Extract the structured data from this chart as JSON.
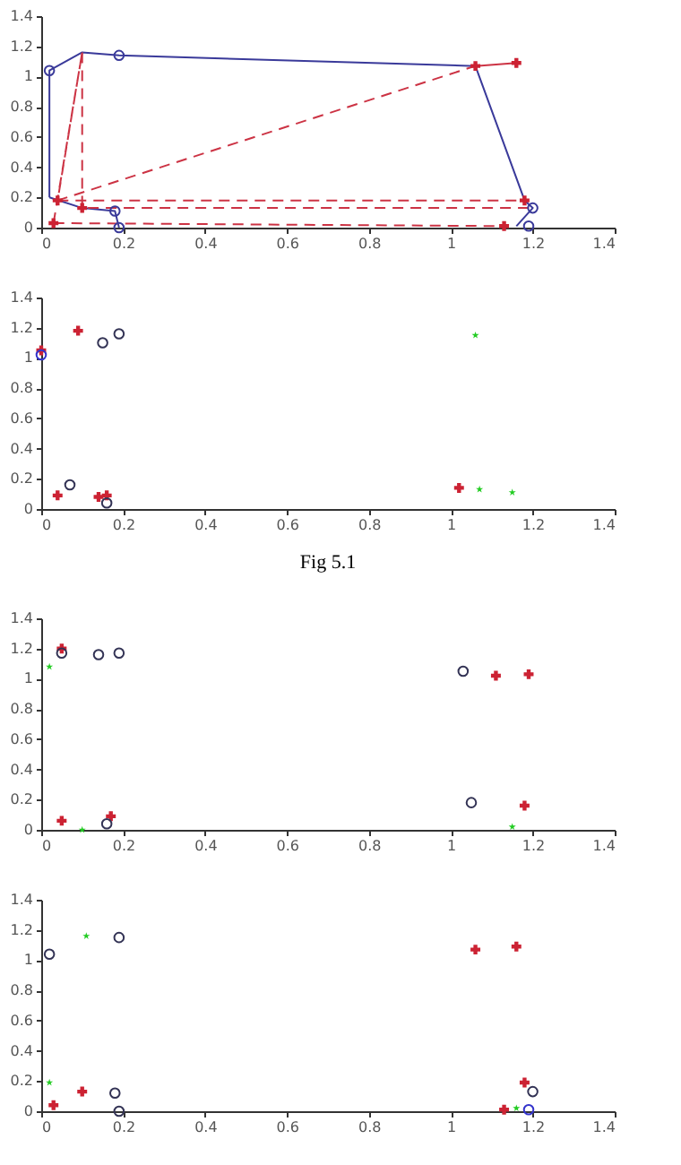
{
  "chart_data": [
    {
      "type": "line",
      "xlim": [
        0,
        1.4
      ],
      "ylim": [
        0,
        1.4
      ],
      "xticks": [
        0,
        0.2,
        0.4,
        0.6,
        0.8,
        1,
        1.2,
        1.4
      ],
      "yticks": [
        0,
        0.2,
        0.4,
        0.6,
        0.8,
        1,
        1.2,
        1.4
      ],
      "grid": false,
      "series": [
        {
          "type": "line",
          "color": "#3a3a9a",
          "line_style": "solid",
          "marker": "none",
          "x": [
            0.02,
            0.02,
            0.1,
            0.19,
            1.06,
            1.18,
            1.2,
            1.16
          ],
          "values": [
            0.2,
            1.04,
            1.16,
            1.14,
            1.07,
            0.18,
            0.13,
            0.01
          ]
        },
        {
          "type": "line",
          "color": "#3a3a9a",
          "line_style": "solid",
          "marker": "none",
          "x": [
            0.02,
            0.1,
            0.18,
            0.19
          ],
          "values": [
            0.2,
            0.13,
            0.11,
            0.0
          ]
        },
        {
          "type": "line",
          "color": "#cc3344",
          "line_style": "dashed",
          "marker": "none",
          "x": [
            0.03,
            0.1,
            0.04,
            1.06
          ],
          "values": [
            0.03,
            1.16,
            0.18,
            1.07
          ]
        },
        {
          "type": "line",
          "color": "#cc3344",
          "line_style": "dashed",
          "marker": "none",
          "x": [
            0.1,
            0.1,
            1.2
          ],
          "values": [
            1.16,
            0.13,
            0.13
          ]
        },
        {
          "type": "line",
          "color": "#cc3344",
          "line_style": "dashed",
          "marker": "none",
          "x": [
            0.04,
            1.18
          ],
          "values": [
            0.18,
            0.18
          ]
        },
        {
          "type": "line",
          "color": "#cc3344",
          "line_style": "dashed",
          "marker": "none",
          "x": [
            0.03,
            1.13
          ],
          "values": [
            0.03,
            0.01
          ]
        },
        {
          "type": "line",
          "color": "#cc3344",
          "line_style": "solid",
          "marker": "none",
          "x": [
            1.06,
            1.16
          ],
          "values": [
            1.07,
            1.09
          ]
        },
        {
          "type": "scatter",
          "color": "#3a3a9a",
          "marker": "circle",
          "x": [
            0.02,
            0.19,
            0.18,
            0.19,
            1.2,
            1.19
          ],
          "values": [
            1.04,
            1.14,
            0.11,
            0.0,
            0.13,
            0.01
          ]
        },
        {
          "type": "scatter",
          "color": "#cc2233",
          "marker": "cross",
          "x": [
            0.03,
            0.1,
            0.04,
            1.06,
            1.16,
            1.18,
            1.13
          ],
          "values": [
            0.03,
            0.13,
            0.18,
            1.07,
            1.09,
            0.18,
            0.01
          ]
        }
      ]
    },
    {
      "type": "scatter",
      "xlim": [
        0,
        1.4
      ],
      "ylim": [
        0,
        1.4
      ],
      "xticks": [
        0,
        0.2,
        0.4,
        0.6,
        0.8,
        1,
        1.2,
        1.4
      ],
      "yticks": [
        0,
        0.2,
        0.4,
        0.6,
        0.8,
        1,
        1.2,
        1.4
      ],
      "grid": false,
      "annotations": [
        "Fig 5.1"
      ],
      "series": [
        {
          "color": "#cc2233",
          "marker": "cross",
          "x": [
            0.0,
            0.09,
            0.04,
            0.14,
            0.16,
            1.02
          ],
          "values": [
            1.05,
            1.18,
            0.09,
            0.08,
            0.09,
            0.14
          ]
        },
        {
          "color": "#333355",
          "marker": "circle",
          "x": [
            0.15,
            0.19,
            0.07,
            0.16
          ],
          "values": [
            1.1,
            1.16,
            0.16,
            0.04
          ]
        },
        {
          "color": "#3333cc",
          "marker": "circle",
          "x": [
            0.0
          ],
          "values": [
            1.02
          ]
        },
        {
          "color": "#22cc22",
          "marker": "star",
          "x": [
            1.06,
            1.07,
            1.15
          ],
          "values": [
            1.15,
            0.13,
            0.11
          ]
        }
      ]
    },
    {
      "type": "scatter",
      "xlim": [
        0,
        1.4
      ],
      "ylim": [
        0,
        1.4
      ],
      "xticks": [
        0,
        0.2,
        0.4,
        0.6,
        0.8,
        1,
        1.2,
        1.4
      ],
      "yticks": [
        0,
        0.2,
        0.4,
        0.6,
        0.8,
        1,
        1.2,
        1.4
      ],
      "grid": false,
      "series": [
        {
          "color": "#cc2233",
          "marker": "cross",
          "x": [
            0.05,
            1.11,
            1.19,
            0.05,
            0.17,
            1.18
          ],
          "values": [
            1.2,
            1.02,
            1.03,
            0.06,
            0.09,
            0.16
          ]
        },
        {
          "color": "#333355",
          "marker": "circle",
          "x": [
            0.05,
            0.14,
            0.19,
            1.03,
            1.05,
            0.16
          ],
          "values": [
            1.17,
            1.16,
            1.17,
            1.05,
            0.18,
            0.04
          ]
        },
        {
          "color": "#22cc22",
          "marker": "star",
          "x": [
            0.02,
            0.1,
            1.15
          ],
          "values": [
            1.08,
            0.0,
            0.02
          ]
        }
      ]
    },
    {
      "type": "scatter",
      "xlim": [
        0,
        1.4
      ],
      "ylim": [
        0,
        1.4
      ],
      "xticks": [
        0,
        0.2,
        0.4,
        0.6,
        0.8,
        1,
        1.2,
        1.4
      ],
      "yticks": [
        0,
        0.2,
        0.4,
        0.6,
        0.8,
        1,
        1.2,
        1.4
      ],
      "grid": false,
      "series": [
        {
          "color": "#cc2233",
          "marker": "cross",
          "x": [
            1.06,
            1.16,
            0.03,
            0.1,
            1.18,
            1.13
          ],
          "values": [
            1.07,
            1.09,
            0.04,
            0.13,
            0.19,
            0.01
          ]
        },
        {
          "color": "#333355",
          "marker": "circle",
          "x": [
            0.02,
            0.19,
            0.18,
            0.19,
            1.2
          ],
          "values": [
            1.04,
            1.15,
            0.12,
            0.0,
            0.13
          ]
        },
        {
          "color": "#3333cc",
          "marker": "circle",
          "x": [
            1.19
          ],
          "values": [
            0.01
          ]
        },
        {
          "color": "#22cc22",
          "marker": "star",
          "x": [
            0.11,
            0.02,
            1.16
          ],
          "values": [
            1.16,
            0.19,
            0.02
          ]
        }
      ]
    }
  ]
}
